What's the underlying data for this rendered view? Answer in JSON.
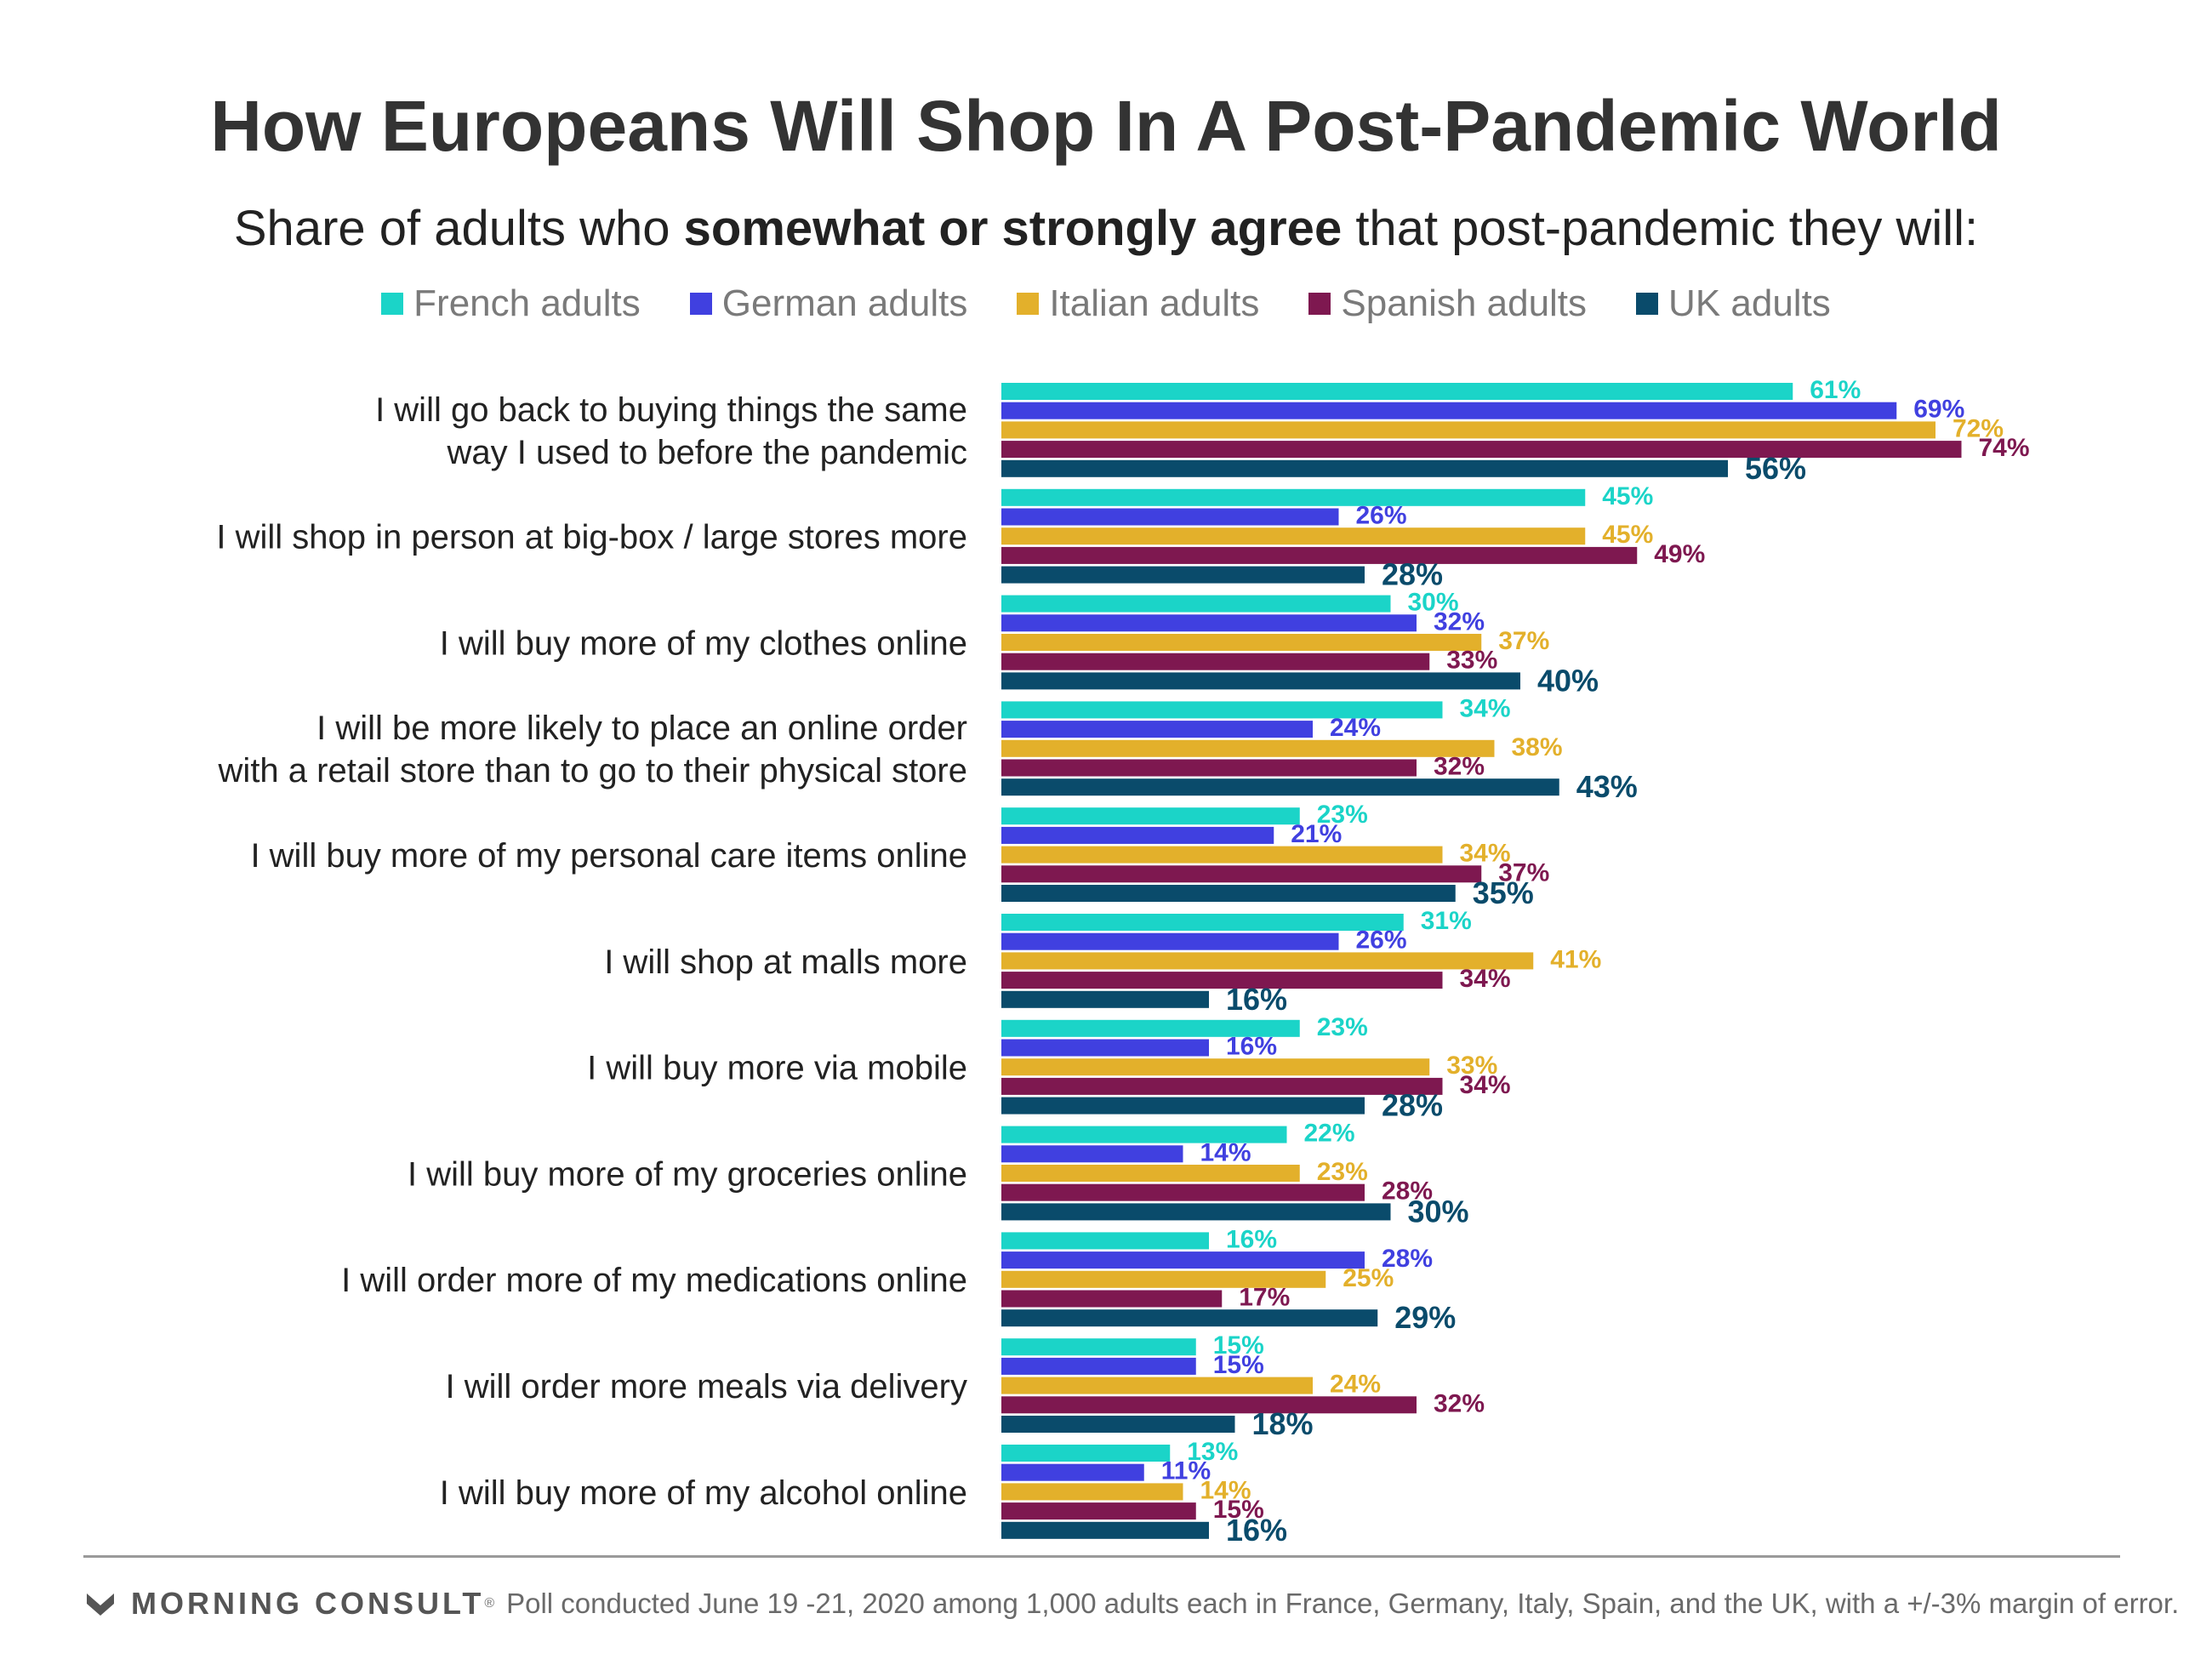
{
  "header": {
    "title": "How Europeans Will Shop In A Post-Pandemic World",
    "subtitle_pre": "Share of adults who ",
    "subtitle_bold": "somewhat or strongly agree",
    "subtitle_post": " that post-pandemic they will:"
  },
  "footer": {
    "brand": "MORNING CONSULT",
    "brand_mark": "®",
    "note": "Poll conducted June 19 -21, 2020 among 1,000 adults each in France, Germany, Italy, Spain, and the UK, with a +/-3% margin of error."
  },
  "chart_data": {
    "type": "bar",
    "orientation": "horizontal",
    "value_suffix": "%",
    "xlim": [
      0,
      74
    ],
    "grid": false,
    "legend_position": "top",
    "categories": [
      [
        "I will go back to buying things the same",
        "way I used to before the pandemic"
      ],
      [
        "I will shop in person at big-box / large stores more"
      ],
      [
        "I will buy more of my clothes online"
      ],
      [
        "I will be more likely to place an online order",
        "with a retail store than to go to their physical store"
      ],
      [
        "I will buy more of my personal care items online"
      ],
      [
        "I will shop at malls more"
      ],
      [
        "I will buy more via mobile"
      ],
      [
        "I will buy more of my groceries online"
      ],
      [
        "I will order more of my medications online"
      ],
      [
        "I will order more meals via delivery"
      ],
      [
        "I will buy more of my alcohol online"
      ]
    ],
    "series": [
      {
        "name": "French adults",
        "color": "#1BD4C8",
        "values": [
          61,
          45,
          30,
          34,
          23,
          31,
          23,
          22,
          16,
          15,
          13
        ]
      },
      {
        "name": "German adults",
        "color": "#4040E0",
        "values": [
          69,
          26,
          32,
          24,
          21,
          26,
          16,
          14,
          28,
          15,
          11
        ]
      },
      {
        "name": "Italian adults",
        "color": "#E3B02B",
        "values": [
          72,
          45,
          37,
          38,
          34,
          41,
          33,
          23,
          25,
          24,
          14
        ]
      },
      {
        "name": "Spanish adults",
        "color": "#7E1850",
        "values": [
          74,
          49,
          33,
          32,
          37,
          34,
          34,
          28,
          17,
          32,
          15
        ]
      },
      {
        "name": "UK adults",
        "color": "#0A4B6B",
        "values": [
          56,
          28,
          40,
          43,
          35,
          16,
          28,
          30,
          29,
          18,
          16
        ]
      }
    ]
  }
}
